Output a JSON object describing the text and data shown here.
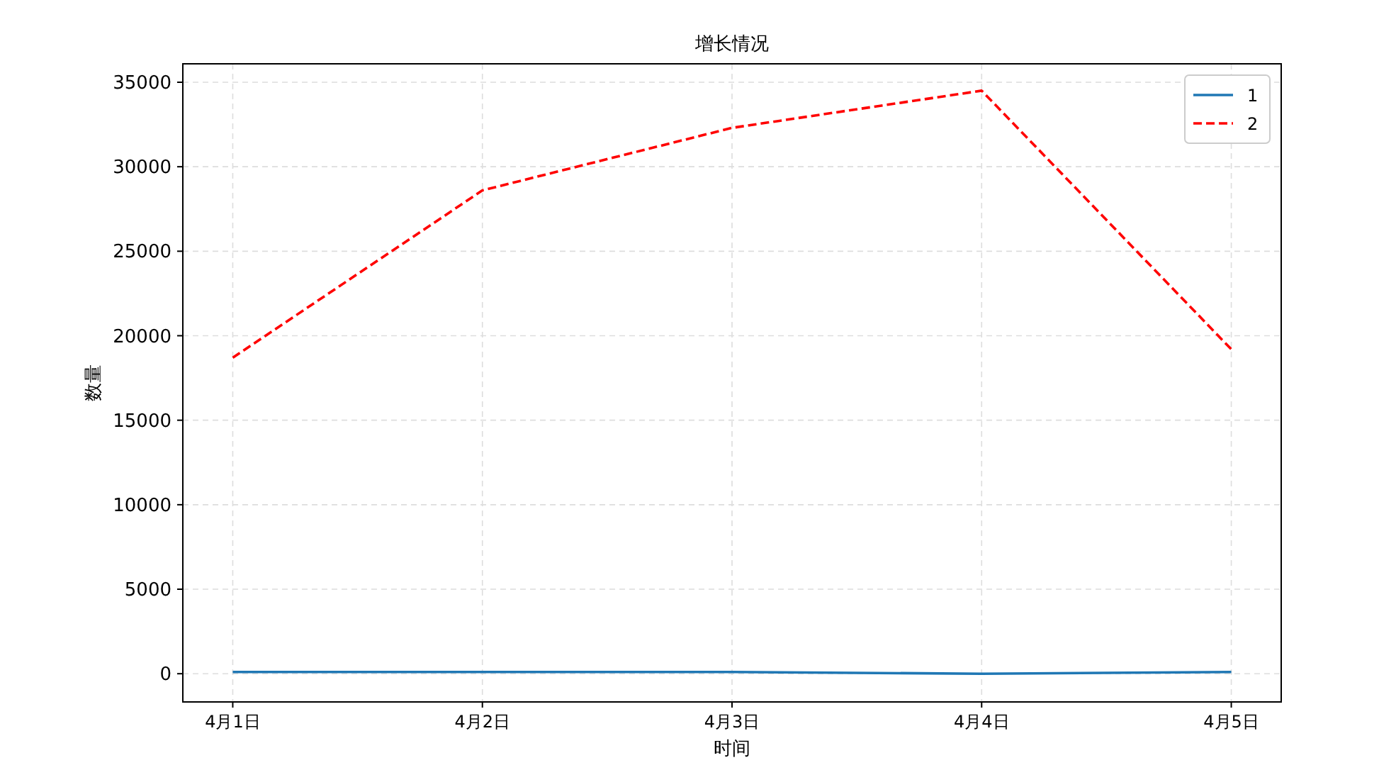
{
  "chart_data": {
    "type": "line",
    "title": "增长情况",
    "xlabel": "时间",
    "ylabel": "数量",
    "categories": [
      "4月1日",
      "4月2日",
      "4月3日",
      "4月4日",
      "4月5日"
    ],
    "series": [
      {
        "name": "1",
        "color": "#1f77b4",
        "line_style": "solid",
        "values": [
          100,
          100,
          100,
          0,
          100
        ]
      },
      {
        "name": "2",
        "color": "#ff0000",
        "line_style": "dashed",
        "values": [
          18700,
          28600,
          32300,
          34500,
          19200
        ]
      }
    ],
    "ylim": [
      -1670,
      36090
    ],
    "yticks": [
      0,
      5000,
      10000,
      15000,
      20000,
      25000,
      30000,
      35000
    ],
    "grid": true,
    "legend": "top right"
  }
}
